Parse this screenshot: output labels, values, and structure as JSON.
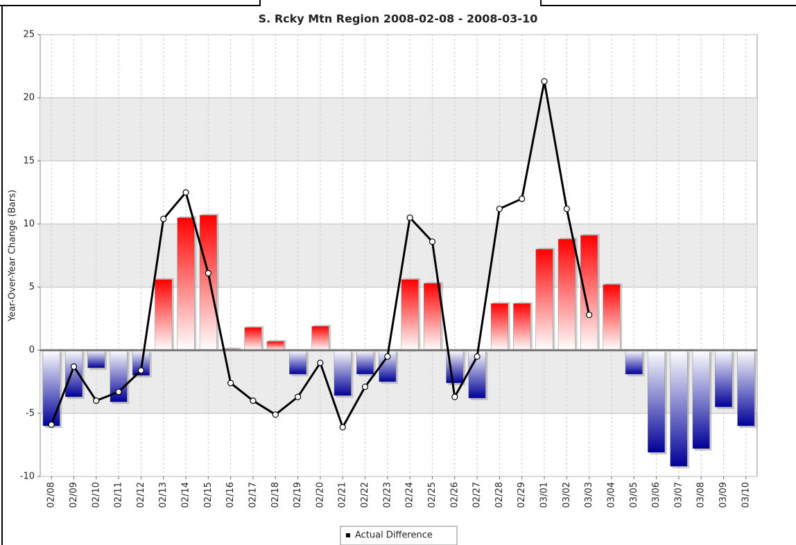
{
  "chart_data": {
    "type": "bar_line",
    "title": "S. Rcky Mtn Region  2008-02-08 - 2008-03-10",
    "y_label": "Year-Over-Year Change (Bars)",
    "categories": [
      "02/08",
      "02/09",
      "02/10",
      "02/11",
      "02/12",
      "02/13",
      "02/14",
      "02/15",
      "02/16",
      "02/17",
      "02/18",
      "02/19",
      "02/20",
      "02/21",
      "02/22",
      "02/23",
      "02/24",
      "02/25",
      "02/26",
      "02/27",
      "02/28",
      "02/29",
      "03/01",
      "03/02",
      "03/03",
      "03/04",
      "03/05",
      "03/06",
      "03/07",
      "03/08",
      "03/09",
      "03/10"
    ],
    "series": [
      {
        "type": "bar",
        "positive_color": "#ff0000",
        "negative_color": "#000099",
        "values": [
          -6.0,
          -3.7,
          -1.4,
          -4.1,
          -2.0,
          5.6,
          10.5,
          10.7,
          0.1,
          1.8,
          0.7,
          -1.9,
          1.9,
          -3.6,
          -1.9,
          -2.5,
          5.6,
          5.3,
          -2.6,
          -3.8,
          3.7,
          3.7,
          8.0,
          8.8,
          9.1,
          5.2,
          -1.9,
          -8.1,
          -9.2,
          -7.8,
          -4.5,
          -6.0
        ]
      },
      {
        "type": "line",
        "name": "Actual Difference",
        "color": "#000000",
        "values": [
          -5.9,
          -1.3,
          -4.0,
          -3.3,
          -1.6,
          10.4,
          12.5,
          6.1,
          -2.6,
          -4.0,
          -5.1,
          -3.7,
          -1.0,
          -6.1,
          -2.9,
          -0.5,
          10.5,
          8.6,
          -3.7,
          -0.5,
          11.2,
          12.0,
          21.3,
          11.2,
          2.8,
          null,
          null,
          null,
          null,
          null,
          null,
          null
        ]
      }
    ],
    "ylim": [
      -10,
      25
    ],
    "yticks": [
      -10,
      -5,
      0,
      5,
      10,
      15,
      20,
      25
    ],
    "grid": true,
    "legend": "bottom"
  }
}
